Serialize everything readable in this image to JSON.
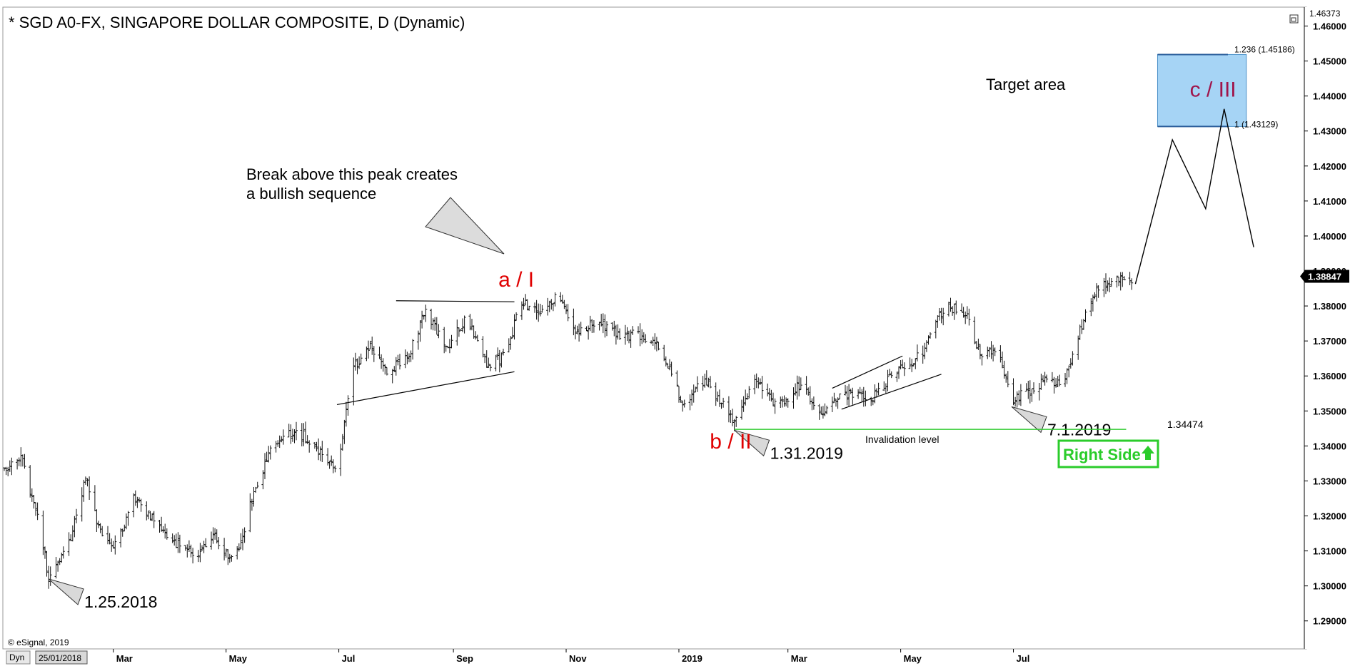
{
  "chart_data": {
    "type": "ohlc",
    "title": "* SGD A0-FX, SINGAPORE DOLLAR COMPOSITE, D (Dynamic)",
    "ylim": [
      1.282,
      1.4654
    ],
    "y_ticks": [
      "1.46000",
      "1.45000",
      "1.44000",
      "1.43000",
      "1.42000",
      "1.41000",
      "1.40000",
      "1.39000",
      "1.38000",
      "1.37000",
      "1.36000",
      "1.35000",
      "1.34000",
      "1.33000",
      "1.32000",
      "1.31000",
      "1.30000",
      "1.29000"
    ],
    "y_top_label": "1.46373",
    "last_price": "1.38847",
    "x_ticks": [
      {
        "label": "25/01/2018",
        "date": "2018-01-25",
        "boxed": true
      },
      {
        "label": "Mar",
        "date": "2018-03-01"
      },
      {
        "label": "May",
        "date": "2018-05-01"
      },
      {
        "label": "Jul",
        "date": "2018-07-01"
      },
      {
        "label": "Sep",
        "date": "2018-09-01"
      },
      {
        "label": "Nov",
        "date": "2018-11-01"
      },
      {
        "label": "2019",
        "date": "2019-01-01",
        "bold": true
      },
      {
        "label": "Mar",
        "date": "2019-03-01"
      },
      {
        "label": "May",
        "date": "2019-05-01"
      },
      {
        "label": "Jul",
        "date": "2019-07-01"
      }
    ],
    "price_path": [
      [
        "2018-01-01",
        1.334
      ],
      [
        "2018-01-10",
        1.337
      ],
      [
        "2018-01-20",
        1.318
      ],
      [
        "2018-01-25",
        1.302
      ],
      [
        "2018-02-05",
        1.312
      ],
      [
        "2018-02-14",
        1.331
      ],
      [
        "2018-02-22",
        1.315
      ],
      [
        "2018-03-01",
        1.31
      ],
      [
        "2018-03-12",
        1.325
      ],
      [
        "2018-03-24",
        1.318
      ],
      [
        "2018-04-05",
        1.312
      ],
      [
        "2018-04-15",
        1.308
      ],
      [
        "2018-04-25",
        1.314
      ],
      [
        "2018-05-02",
        1.309
      ],
      [
        "2018-05-08",
        1.31
      ],
      [
        "2018-05-16",
        1.327
      ],
      [
        "2018-05-25",
        1.338
      ],
      [
        "2018-06-02",
        1.344
      ],
      [
        "2018-06-12",
        1.343
      ],
      [
        "2018-06-22",
        1.338
      ],
      [
        "2018-06-30",
        1.333
      ],
      [
        "2018-07-08",
        1.362
      ],
      [
        "2018-07-18",
        1.368
      ],
      [
        "2018-07-28",
        1.361
      ],
      [
        "2018-08-08",
        1.366
      ],
      [
        "2018-08-17",
        1.379
      ],
      [
        "2018-08-28",
        1.368
      ],
      [
        "2018-09-08",
        1.377
      ],
      [
        "2018-09-20",
        1.363
      ],
      [
        "2018-09-30",
        1.366
      ],
      [
        "2018-10-07",
        1.381
      ],
      [
        "2018-10-17",
        1.378
      ],
      [
        "2018-10-28",
        1.383
      ],
      [
        "2018-11-08",
        1.372
      ],
      [
        "2018-11-18",
        1.376
      ],
      [
        "2018-11-30",
        1.371
      ],
      [
        "2018-12-12",
        1.372
      ],
      [
        "2018-12-22",
        1.368
      ],
      [
        "2019-01-03",
        1.352
      ],
      [
        "2019-01-15",
        1.359
      ],
      [
        "2019-01-31",
        1.347
      ],
      [
        "2019-02-12",
        1.359
      ],
      [
        "2019-02-24",
        1.351
      ],
      [
        "2019-03-08",
        1.358
      ],
      [
        "2019-03-18",
        1.349
      ],
      [
        "2019-03-31",
        1.355
      ],
      [
        "2019-04-15",
        1.353
      ],
      [
        "2019-04-30",
        1.362
      ],
      [
        "2019-05-12",
        1.366
      ],
      [
        "2019-05-25",
        1.38
      ],
      [
        "2019-06-05",
        1.378
      ],
      [
        "2019-06-14",
        1.365
      ],
      [
        "2019-06-22",
        1.368
      ],
      [
        "2019-07-01",
        1.353
      ],
      [
        "2019-07-10",
        1.356
      ],
      [
        "2019-07-20",
        1.359
      ],
      [
        "2019-07-28",
        1.357
      ],
      [
        "2019-08-05",
        1.372
      ],
      [
        "2019-08-15",
        1.384
      ],
      [
        "2019-08-24",
        1.388
      ],
      [
        "2019-09-03",
        1.386
      ]
    ],
    "projection": [
      [
        "2019-09-05",
        1.3863
      ],
      [
        "2019-09-25",
        1.4275
      ],
      [
        "2019-10-13",
        1.4078
      ],
      [
        "2019-10-23",
        1.4363
      ],
      [
        "2019-11-08",
        1.3968
      ]
    ],
    "target_area": {
      "from": "2019-09-17",
      "to": "2019-11-04",
      "low": 1.43129,
      "high": 1.45186,
      "low_label": "1 (1.43129)",
      "high_label": "1.236 (1.45186)",
      "title": "Target area"
    },
    "invalidation": {
      "value": 1.34474,
      "value_label": "1.34474",
      "label": "Invalidation level",
      "from": "2019-01-31",
      "to": "2019-08-31"
    },
    "triangle_lines": [
      [
        [
          "2018-08-01",
          1.3815
        ],
        [
          "2018-10-04",
          1.3812
        ]
      ],
      [
        [
          "2018-06-30",
          1.3518
        ],
        [
          "2018-10-04",
          1.3612
        ]
      ]
    ],
    "channel_lines": [
      [
        [
          "2019-03-25",
          1.3565
        ],
        [
          "2019-05-02",
          1.3657
        ]
      ],
      [
        [
          "2019-03-30",
          1.3505
        ],
        [
          "2019-05-23",
          1.3605
        ]
      ]
    ],
    "wave_labels": [
      {
        "text": "a / I",
        "date": "2018-10-05",
        "value": 1.3855,
        "style": "red"
      },
      {
        "text": "b / II",
        "date": "2019-01-29",
        "value": 1.3393,
        "style": "red"
      },
      {
        "text": "c / III",
        "date": "2019-10-17",
        "value": 1.4398,
        "style": "maroon"
      }
    ],
    "date_callouts": [
      {
        "text": "1.25.2018",
        "date": "2018-01-25",
        "value": 1.302
      },
      {
        "text": "1.31.2019",
        "date": "2019-01-31",
        "value": 1.3445
      },
      {
        "text": "7.1.2019",
        "date": "2019-06-30",
        "value": 1.3512
      }
    ],
    "break_note": [
      "Break above this peak creates",
      "a bullish sequence"
    ],
    "right_side": "Right Side",
    "watermark": "© eSignal, 2019",
    "dyn_label": "Dyn"
  }
}
